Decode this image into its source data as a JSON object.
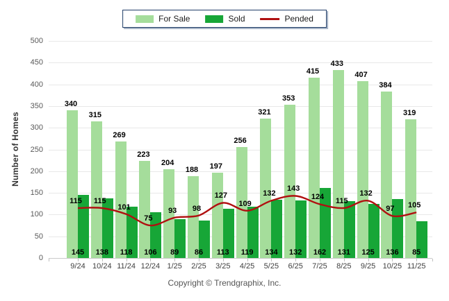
{
  "chart_data": {
    "type": "combo",
    "title": "",
    "categories": [
      "9/24",
      "10/24",
      "11/24",
      "12/24",
      "1/25",
      "2/25",
      "3/25",
      "4/25",
      "5/25",
      "6/25",
      "7/25",
      "8/25",
      "9/25",
      "10/25",
      "11/25"
    ],
    "series": [
      {
        "name": "For Sale",
        "type": "bar",
        "color": "#a5dd9b",
        "values": [
          340,
          315,
          269,
          223,
          204,
          188,
          197,
          256,
          321,
          353,
          415,
          433,
          407,
          384,
          319
        ]
      },
      {
        "name": "Sold",
        "type": "bar",
        "color": "#17a637",
        "values": [
          145,
          138,
          118,
          106,
          89,
          86,
          113,
          119,
          134,
          132,
          162,
          131,
          125,
          136,
          85
        ]
      },
      {
        "name": "Pended",
        "type": "line",
        "color": "#b01010",
        "values": [
          115,
          115,
          101,
          75,
          93,
          98,
          127,
          109,
          132,
          143,
          124,
          115,
          132,
          97,
          105
        ]
      }
    ],
    "xlabel": "",
    "ylabel": "Number of Homes",
    "ylim": [
      0,
      500
    ],
    "ytick_step": 50,
    "grid": true,
    "legend_position": "top-center",
    "colors": {
      "grid": "#e8e8e8",
      "axis": "#c9c9c9",
      "tick_text": "#595959",
      "value_label": "#000000",
      "legend_border": "#1f3b66"
    }
  },
  "footer": {
    "copyright": "Copyright © Trendgraphix, Inc."
  }
}
